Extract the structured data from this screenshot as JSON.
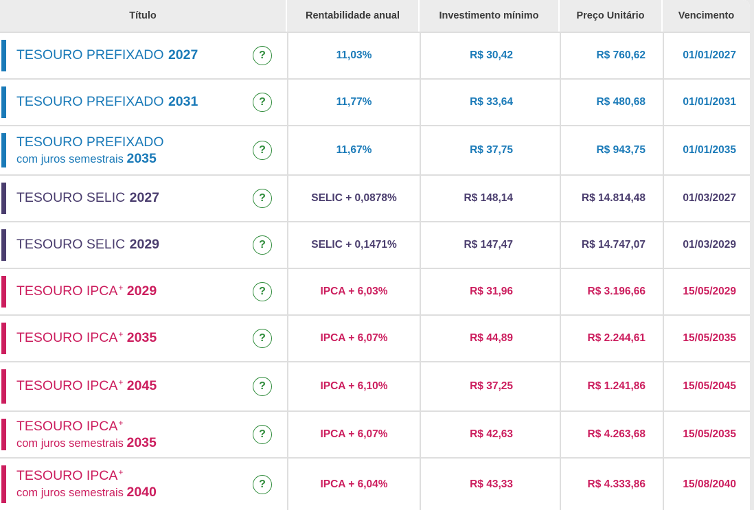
{
  "header": {
    "titulo": "Título",
    "rentabilidade": "Rentabilidade anual",
    "investimento": "Investimento mínimo",
    "preco": "Preço Unitário",
    "vencimento": "Vencimento"
  },
  "colors": {
    "prefixado": "#1a7ab8",
    "selic": "#4a3d6e",
    "ipca": "#cc1e5e",
    "help": "#2e8b3a"
  },
  "help_icon": "question-circle-icon",
  "rows": [
    {
      "line1": "TESOURO PREFIXADO",
      "sup": "",
      "line2": "",
      "year": "2027",
      "rent": "11,03%",
      "inv": "R$ 30,42",
      "preco": "R$ 760,62",
      "venc": "01/01/2027"
    },
    {
      "line1": "TESOURO PREFIXADO",
      "sup": "",
      "line2": "",
      "year": "2031",
      "rent": "11,77%",
      "inv": "R$ 33,64",
      "preco": "R$ 480,68",
      "venc": "01/01/2031"
    },
    {
      "line1": "TESOURO PREFIXADO",
      "sup": "",
      "line2": "com juros semestrais",
      "year": "2035",
      "rent": "11,67%",
      "inv": "R$ 37,75",
      "preco": "R$ 943,75",
      "venc": "01/01/2035"
    },
    {
      "line1": "TESOURO SELIC",
      "sup": "",
      "line2": "",
      "year": "2027",
      "rent": "SELIC + 0,0878%",
      "inv": "R$ 148,14",
      "preco": "R$ 14.814,48",
      "venc": "01/03/2027"
    },
    {
      "line1": "TESOURO SELIC",
      "sup": "",
      "line2": "",
      "year": "2029",
      "rent": "SELIC + 0,1471%",
      "inv": "R$ 147,47",
      "preco": "R$ 14.747,07",
      "venc": "01/03/2029"
    },
    {
      "line1": "TESOURO IPCA",
      "sup": "+",
      "line2": "",
      "year": "2029",
      "rent": "IPCA + 6,03%",
      "inv": "R$ 31,96",
      "preco": "R$ 3.196,66",
      "venc": "15/05/2029"
    },
    {
      "line1": "TESOURO IPCA",
      "sup": "+",
      "line2": "",
      "year": "2035",
      "rent": "IPCA + 6,07%",
      "inv": "R$ 44,89",
      "preco": "R$ 2.244,61",
      "venc": "15/05/2035"
    },
    {
      "line1": "TESOURO IPCA",
      "sup": "+",
      "line2": "",
      "year": "2045",
      "rent": "IPCA + 6,10%",
      "inv": "R$ 37,25",
      "preco": "R$ 1.241,86",
      "venc": "15/05/2045"
    },
    {
      "line1": "TESOURO IPCA",
      "sup": "+",
      "line2": "com juros semestrais",
      "year": "2035",
      "rent": "IPCA + 6,07%",
      "inv": "R$ 42,63",
      "preco": "R$ 4.263,68",
      "venc": "15/05/2035"
    },
    {
      "line1": "TESOURO IPCA",
      "sup": "+",
      "line2": "com juros semestrais",
      "year": "2040",
      "rent": "IPCA + 6,04%",
      "inv": "R$ 43,33",
      "preco": "R$ 4.333,86",
      "venc": "15/08/2040"
    }
  ]
}
